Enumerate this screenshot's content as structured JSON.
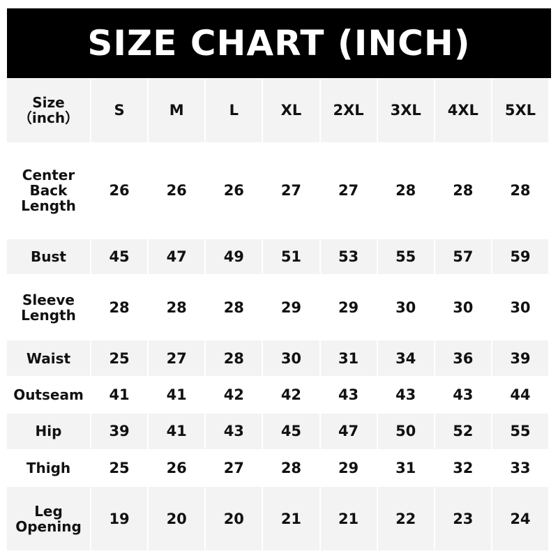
{
  "title": "SIZE CHART (INCH)",
  "header": {
    "label_line1": "Size",
    "label_line2": "（inch）",
    "sizes": [
      "S",
      "M",
      "L",
      "XL",
      "2XL",
      "3XL",
      "4XL",
      "5XL"
    ]
  },
  "rows": [
    {
      "label": "Center Back Length",
      "values": [
        "26",
        "26",
        "26",
        "27",
        "27",
        "28",
        "28",
        "28"
      ]
    },
    {
      "label": "Bust",
      "values": [
        "45",
        "47",
        "49",
        "51",
        "53",
        "55",
        "57",
        "59"
      ]
    },
    {
      "label": "Sleeve Length",
      "values": [
        "28",
        "28",
        "28",
        "29",
        "29",
        "30",
        "30",
        "30"
      ]
    },
    {
      "label": "Waist",
      "values": [
        "25",
        "27",
        "28",
        "30",
        "31",
        "34",
        "36",
        "39"
      ]
    },
    {
      "label": "Outseam",
      "values": [
        "41",
        "41",
        "42",
        "42",
        "43",
        "43",
        "43",
        "44"
      ]
    },
    {
      "label": "Hip",
      "values": [
        "39",
        "41",
        "43",
        "45",
        "47",
        "50",
        "52",
        "55"
      ]
    },
    {
      "label": "Thigh",
      "values": [
        "25",
        "26",
        "27",
        "28",
        "29",
        "31",
        "32",
        "33"
      ]
    },
    {
      "label": "Leg Opening",
      "values": [
        "19",
        "20",
        "20",
        "21",
        "21",
        "22",
        "23",
        "24"
      ]
    }
  ],
  "colors": {
    "header_bg": "#000000",
    "row_gray": "#f3f3f3",
    "row_white": "#ffffff"
  }
}
